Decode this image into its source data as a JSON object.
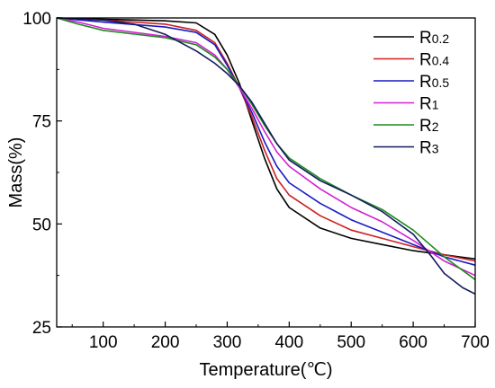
{
  "chart_data": {
    "type": "line",
    "xlabel": "Temperature(℃)",
    "ylabel": "Mass(%)",
    "xlim": [
      25,
      700
    ],
    "ylim": [
      25,
      100
    ],
    "xticks": [
      100,
      200,
      300,
      400,
      500,
      600,
      700
    ],
    "yticks": [
      25,
      50,
      75,
      100
    ],
    "grid": false,
    "legend_position": "top-right",
    "series": [
      {
        "name": "R0.2",
        "main": "R",
        "sub": "0.2",
        "color": "#000000",
        "points": [
          [
            25,
            100
          ],
          [
            100,
            99.7
          ],
          [
            200,
            99.3
          ],
          [
            250,
            98.8
          ],
          [
            280,
            96
          ],
          [
            300,
            91
          ],
          [
            320,
            84
          ],
          [
            340,
            75
          ],
          [
            360,
            66
          ],
          [
            380,
            58.5
          ],
          [
            400,
            54
          ],
          [
            450,
            49
          ],
          [
            500,
            46.5
          ],
          [
            550,
            45
          ],
          [
            600,
            43.5
          ],
          [
            650,
            42.5
          ],
          [
            700,
            41.5
          ]
        ]
      },
      {
        "name": "R0.4",
        "main": "R",
        "sub": "0.4",
        "color": "#cc1f1f",
        "points": [
          [
            25,
            100
          ],
          [
            100,
            99.5
          ],
          [
            200,
            98.5
          ],
          [
            250,
            97
          ],
          [
            280,
            94
          ],
          [
            300,
            89
          ],
          [
            320,
            83
          ],
          [
            340,
            76
          ],
          [
            360,
            68
          ],
          [
            380,
            61
          ],
          [
            400,
            57
          ],
          [
            450,
            52
          ],
          [
            500,
            48.5
          ],
          [
            550,
            46.5
          ],
          [
            600,
            44.5
          ],
          [
            650,
            42.5
          ],
          [
            700,
            41
          ]
        ]
      },
      {
        "name": "R0.5",
        "main": "R",
        "sub": "0.5",
        "color": "#1a1ac4",
        "points": [
          [
            25,
            100
          ],
          [
            100,
            99
          ],
          [
            200,
            97.8
          ],
          [
            250,
            96.5
          ],
          [
            280,
            93.5
          ],
          [
            300,
            88.5
          ],
          [
            320,
            83
          ],
          [
            340,
            77
          ],
          [
            360,
            70
          ],
          [
            380,
            64
          ],
          [
            400,
            60
          ],
          [
            450,
            55
          ],
          [
            500,
            51
          ],
          [
            550,
            48
          ],
          [
            600,
            45
          ],
          [
            650,
            42
          ],
          [
            700,
            40
          ]
        ]
      },
      {
        "name": "R1",
        "main": "R",
        "sub": "1",
        "color": "#d41fd4",
        "points": [
          [
            25,
            100
          ],
          [
            60,
            99
          ],
          [
            100,
            97.5
          ],
          [
            200,
            95.5
          ],
          [
            250,
            94
          ],
          [
            280,
            91
          ],
          [
            300,
            87.5
          ],
          [
            320,
            83
          ],
          [
            340,
            78
          ],
          [
            360,
            72.5
          ],
          [
            380,
            67.5
          ],
          [
            400,
            64
          ],
          [
            450,
            58.5
          ],
          [
            500,
            54
          ],
          [
            550,
            50.5
          ],
          [
            600,
            46
          ],
          [
            650,
            41
          ],
          [
            700,
            37.5
          ]
        ]
      },
      {
        "name": "R2",
        "main": "R",
        "sub": "2",
        "color": "#1f8a1f",
        "points": [
          [
            25,
            100
          ],
          [
            60,
            98.5
          ],
          [
            100,
            97
          ],
          [
            200,
            95.2
          ],
          [
            250,
            93.5
          ],
          [
            280,
            90.5
          ],
          [
            300,
            87.5
          ],
          [
            320,
            83.5
          ],
          [
            340,
            79
          ],
          [
            360,
            74
          ],
          [
            380,
            69.5
          ],
          [
            400,
            66
          ],
          [
            450,
            61
          ],
          [
            500,
            57
          ],
          [
            550,
            53.5
          ],
          [
            600,
            48.5
          ],
          [
            650,
            42
          ],
          [
            700,
            36.5
          ]
        ]
      },
      {
        "name": "R3",
        "main": "R",
        "sub": "3",
        "color": "#121a5e",
        "points": [
          [
            25,
            100
          ],
          [
            100,
            99.5
          ],
          [
            150,
            98.5
          ],
          [
            200,
            96
          ],
          [
            250,
            92
          ],
          [
            280,
            89
          ],
          [
            300,
            86.5
          ],
          [
            320,
            83.5
          ],
          [
            340,
            79.5
          ],
          [
            360,
            74.5
          ],
          [
            380,
            69.5
          ],
          [
            400,
            65.5
          ],
          [
            450,
            60.5
          ],
          [
            500,
            57
          ],
          [
            550,
            53
          ],
          [
            600,
            47.5
          ],
          [
            630,
            42
          ],
          [
            650,
            38
          ],
          [
            680,
            34.5
          ],
          [
            700,
            33
          ]
        ]
      }
    ]
  }
}
